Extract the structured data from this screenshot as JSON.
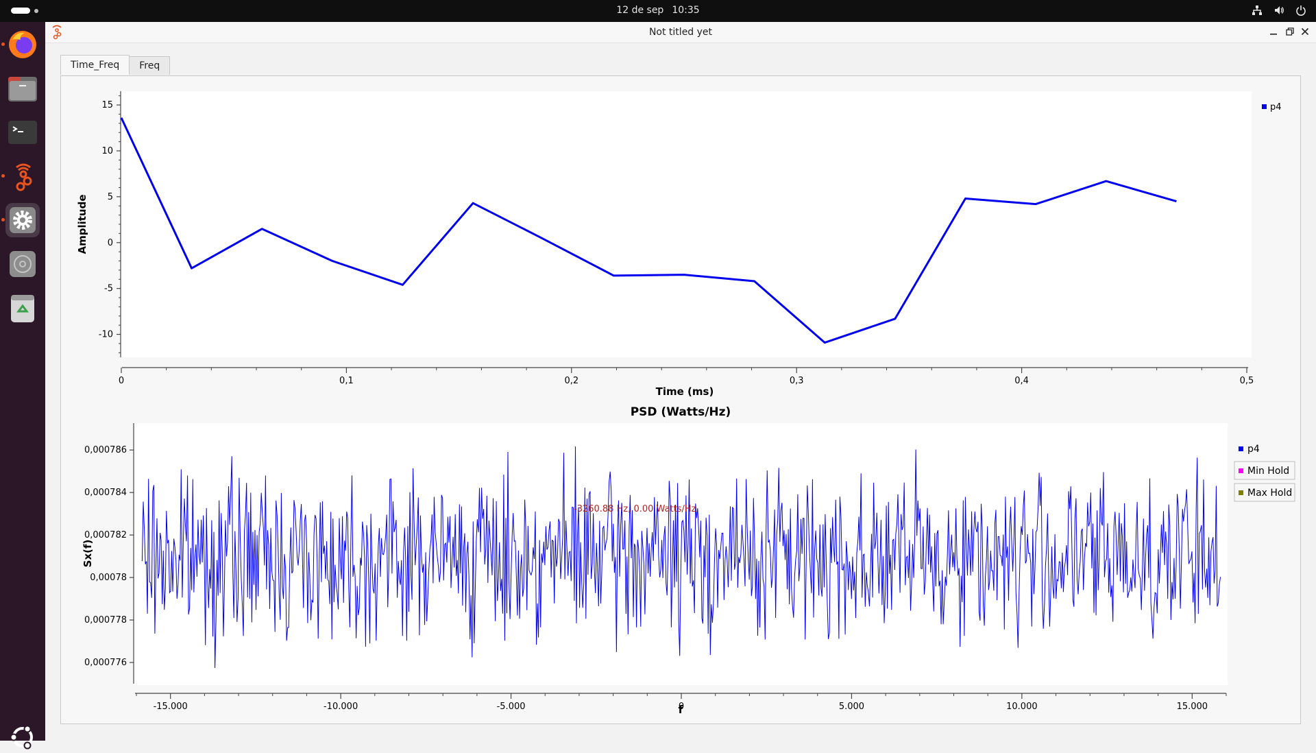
{
  "topbar": {
    "date": "12 de sep",
    "time": "10:35",
    "tray_icons": [
      "network-icon",
      "volume-icon",
      "power-icon"
    ]
  },
  "dock": {
    "apps": [
      {
        "name": "firefox-icon",
        "running": true
      },
      {
        "name": "files-icon",
        "running": false
      },
      {
        "name": "terminal-icon",
        "running": false
      },
      {
        "name": "gnuradio-icon",
        "running": true
      },
      {
        "name": "settings-icon",
        "running": true
      },
      {
        "name": "disc-icon",
        "running": false
      },
      {
        "name": "trash-icon",
        "running": false
      }
    ],
    "show_apps": "ubuntu-icon"
  },
  "window": {
    "title": "Not titled yet",
    "tabs": [
      {
        "label": "Time_Freq",
        "active": true
      },
      {
        "label": "Freq",
        "active": false
      }
    ]
  },
  "colors": {
    "series": "#0000ee",
    "min_hold": "#ff00ff",
    "max_hold": "#808000",
    "marker_text": "#b22222"
  },
  "chart_data": [
    {
      "type": "line",
      "title": "",
      "xlabel": "Time (ms)",
      "ylabel": "Amplitude",
      "xlim": [
        0,
        0.5
      ],
      "ylim": [
        -12.5,
        16.5
      ],
      "x_ticks": [
        "0",
        "0,1",
        "0,2",
        "0,3",
        "0,4",
        "0,5"
      ],
      "y_ticks": [
        "15",
        "10",
        "5",
        "0",
        "-5",
        "-10"
      ],
      "legend": [
        "p4"
      ],
      "legend_position": "top-right",
      "series": [
        {
          "name": "p4",
          "x": [
            0,
            0.03125,
            0.0625,
            0.09375,
            0.125,
            0.15625,
            0.1875,
            0.21875,
            0.25,
            0.28125,
            0.3125,
            0.34375,
            0.375,
            0.40625,
            0.4375,
            0.46875
          ],
          "y": [
            13.6,
            -2.8,
            1.5,
            -2.0,
            -4.6,
            4.3,
            0.4,
            -3.6,
            -3.5,
            -4.2,
            -10.9,
            -8.3,
            4.8,
            4.2,
            6.7,
            4.5
          ]
        }
      ]
    },
    {
      "type": "line",
      "title": "PSD (Watts/Hz)",
      "xlabel": "f",
      "ylabel": "Sx(f)",
      "xlim": [
        -16000,
        16000
      ],
      "ylim": [
        0.000775,
        0.0007872
      ],
      "x_ticks": [
        "-15.000",
        "-10.000",
        "-5.000",
        "0",
        "5.000",
        "10.000",
        "15.000"
      ],
      "y_ticks": [
        "0,000786",
        "0,000784",
        "0,000782",
        "0,00078",
        "0,000778",
        "0,000776"
      ],
      "legend": [
        "p4",
        "Min Hold",
        "Max Hold"
      ],
      "legend_position": "right",
      "marker_label": "-3260.88 Hz, 0.00 Watts/Hz",
      "series_note": "noise-like PSD trace fluctuating between approximately 0,0007751 and 0,0007869",
      "series": [
        {
          "name": "p4"
        }
      ],
      "value_range": [
        0.0007751,
        0.0007869
      ]
    }
  ]
}
